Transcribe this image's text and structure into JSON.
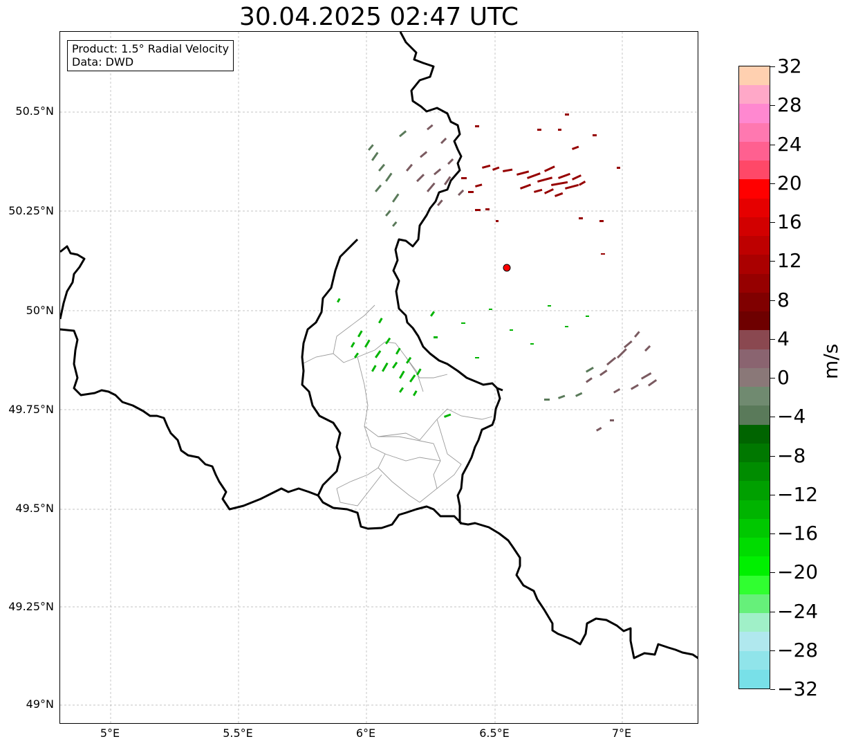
{
  "title": "30.04.2025 02:47 UTC",
  "info": {
    "product": "Product: 1.5° Radial Velocity",
    "source": "Data: DWD"
  },
  "axes": {
    "lat_labels": [
      "50.5°N",
      "50.25°N",
      "50°N",
      "49.75°N",
      "49.5°N",
      "49.25°N",
      "49°N"
    ],
    "lon_labels": [
      "5°E",
      "5.5°E",
      "6°E",
      "6.5°E",
      "7°E"
    ]
  },
  "colorbar": {
    "unit": "m/s",
    "tick_labels": [
      "32",
      "28",
      "24",
      "20",
      "16",
      "12",
      "8",
      "4",
      "0",
      "−4",
      "−8",
      "−12",
      "−16",
      "−20",
      "−24",
      "−28",
      "−32"
    ],
    "colors": [
      "#ffd0b0",
      "#ffa8c8",
      "#ff88d0",
      "#ff78b0",
      "#ff6090",
      "#ff4868",
      "#ff0000",
      "#e60000",
      "#d20000",
      "#be0000",
      "#aa0000",
      "#960000",
      "#800000",
      "#6e0000",
      "#8a4850",
      "#8a6470",
      "#8a7878",
      "#708a70",
      "#5a7a5a",
      "#006400",
      "#007800",
      "#008c00",
      "#00a000",
      "#00b400",
      "#00c800",
      "#00dc00",
      "#00f000",
      "#30ff30",
      "#66f07a",
      "#a0f0c8",
      "#b0e8ee",
      "#90e4ea",
      "#78e0e8"
    ]
  },
  "radar_site": {
    "label": "radar-site",
    "color": "#ff0000"
  }
}
